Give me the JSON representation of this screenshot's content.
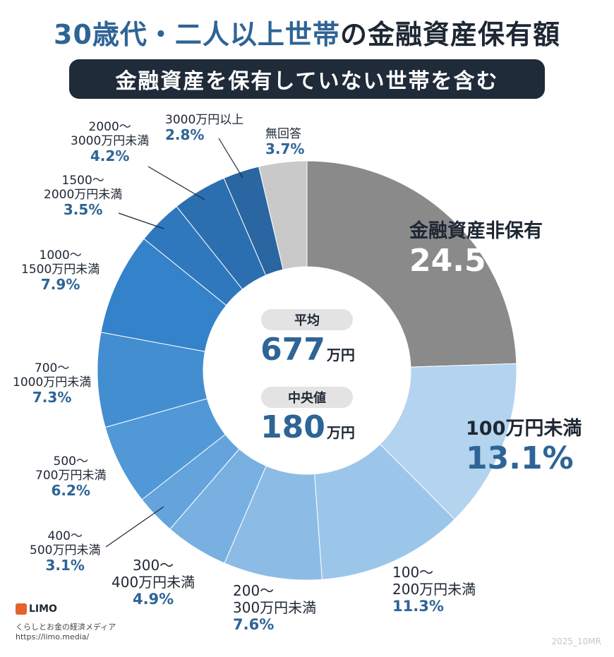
{
  "title": {
    "part1": "30歳代・二人以上世帯",
    "part2": "の金融資産保有額"
  },
  "subtitle": "金融資産を保有していない世帯を含む",
  "center": {
    "avg_label": "平均",
    "avg_value": "677",
    "avg_unit": "万円",
    "median_label": "中央値",
    "median_value": "180",
    "median_unit": "万円"
  },
  "colors": {
    "none": "#8a8a8a",
    "no_answer": "#c9c9c9",
    "blues": [
      "#b3d3ef",
      "#9cc5ea",
      "#8cbce6",
      "#78b0e1",
      "#64a3db",
      "#5198d6",
      "#428ed1",
      "#3482c9",
      "#2f78be",
      "#2b6fb0",
      "#2a66a1"
    ]
  },
  "chart_data": {
    "type": "pie",
    "donut": true,
    "start": "top",
    "direction": "clockwise",
    "slices": [
      {
        "label": "金融資産非保有",
        "value": 24.5,
        "pct": "24.5%"
      },
      {
        "label": "100万円未満",
        "value": 13.1,
        "pct": "13.1%"
      },
      {
        "label": "100〜200万円未満",
        "value": 11.3,
        "pct": "11.3%"
      },
      {
        "label": "200〜300万円未満",
        "value": 7.6,
        "pct": "7.6%"
      },
      {
        "label": "300〜400万円未満",
        "value": 4.9,
        "pct": "4.9%"
      },
      {
        "label": "400〜500万円未満",
        "value": 3.1,
        "pct": "3.1%"
      },
      {
        "label": "500〜700万円未満",
        "value": 6.2,
        "pct": "6.2%"
      },
      {
        "label": "700〜1000万円未満",
        "value": 7.3,
        "pct": "7.3%"
      },
      {
        "label": "1000〜1500万円未満",
        "value": 7.9,
        "pct": "7.9%"
      },
      {
        "label": "1500〜2000万円未満",
        "value": 3.5,
        "pct": "3.5%"
      },
      {
        "label": "2000〜3000万円未満",
        "value": 4.2,
        "pct": "4.2%"
      },
      {
        "label": "3000万円以上",
        "value": 2.8,
        "pct": "2.8%"
      },
      {
        "label": "無回答",
        "value": 3.7,
        "pct": "3.7%"
      }
    ]
  },
  "labels": {
    "s0": {
      "l1": "金融資産非保有"
    },
    "s1": {
      "l1": "100万円未満"
    },
    "s2": {
      "l1": "100〜",
      "l2": "200万円未満"
    },
    "s3": {
      "l1": "200〜",
      "l2": "300万円未満"
    },
    "s4": {
      "l1": "300〜",
      "l2": "400万円未満"
    },
    "s5": {
      "l1": "400〜",
      "l2": "500万円未満"
    },
    "s6": {
      "l1": "500〜",
      "l2": "700万円未満"
    },
    "s7": {
      "l1": "700〜",
      "l2": "1000万円未満"
    },
    "s8": {
      "l1": "1000〜",
      "l2": "1500万円未満"
    },
    "s9": {
      "l1": "1500〜",
      "l2": "2000万円未満"
    },
    "s10": {
      "l1": "2000〜",
      "l2": "3000万円未満"
    },
    "s11": {
      "l1": "3000万円以上"
    },
    "s12": {
      "l1": "無回答"
    }
  },
  "logo": {
    "name": "LIMO",
    "tagline": "くらしとお金の経済メディア",
    "url": "https://limo.media/"
  },
  "credit": "2025_10MR"
}
